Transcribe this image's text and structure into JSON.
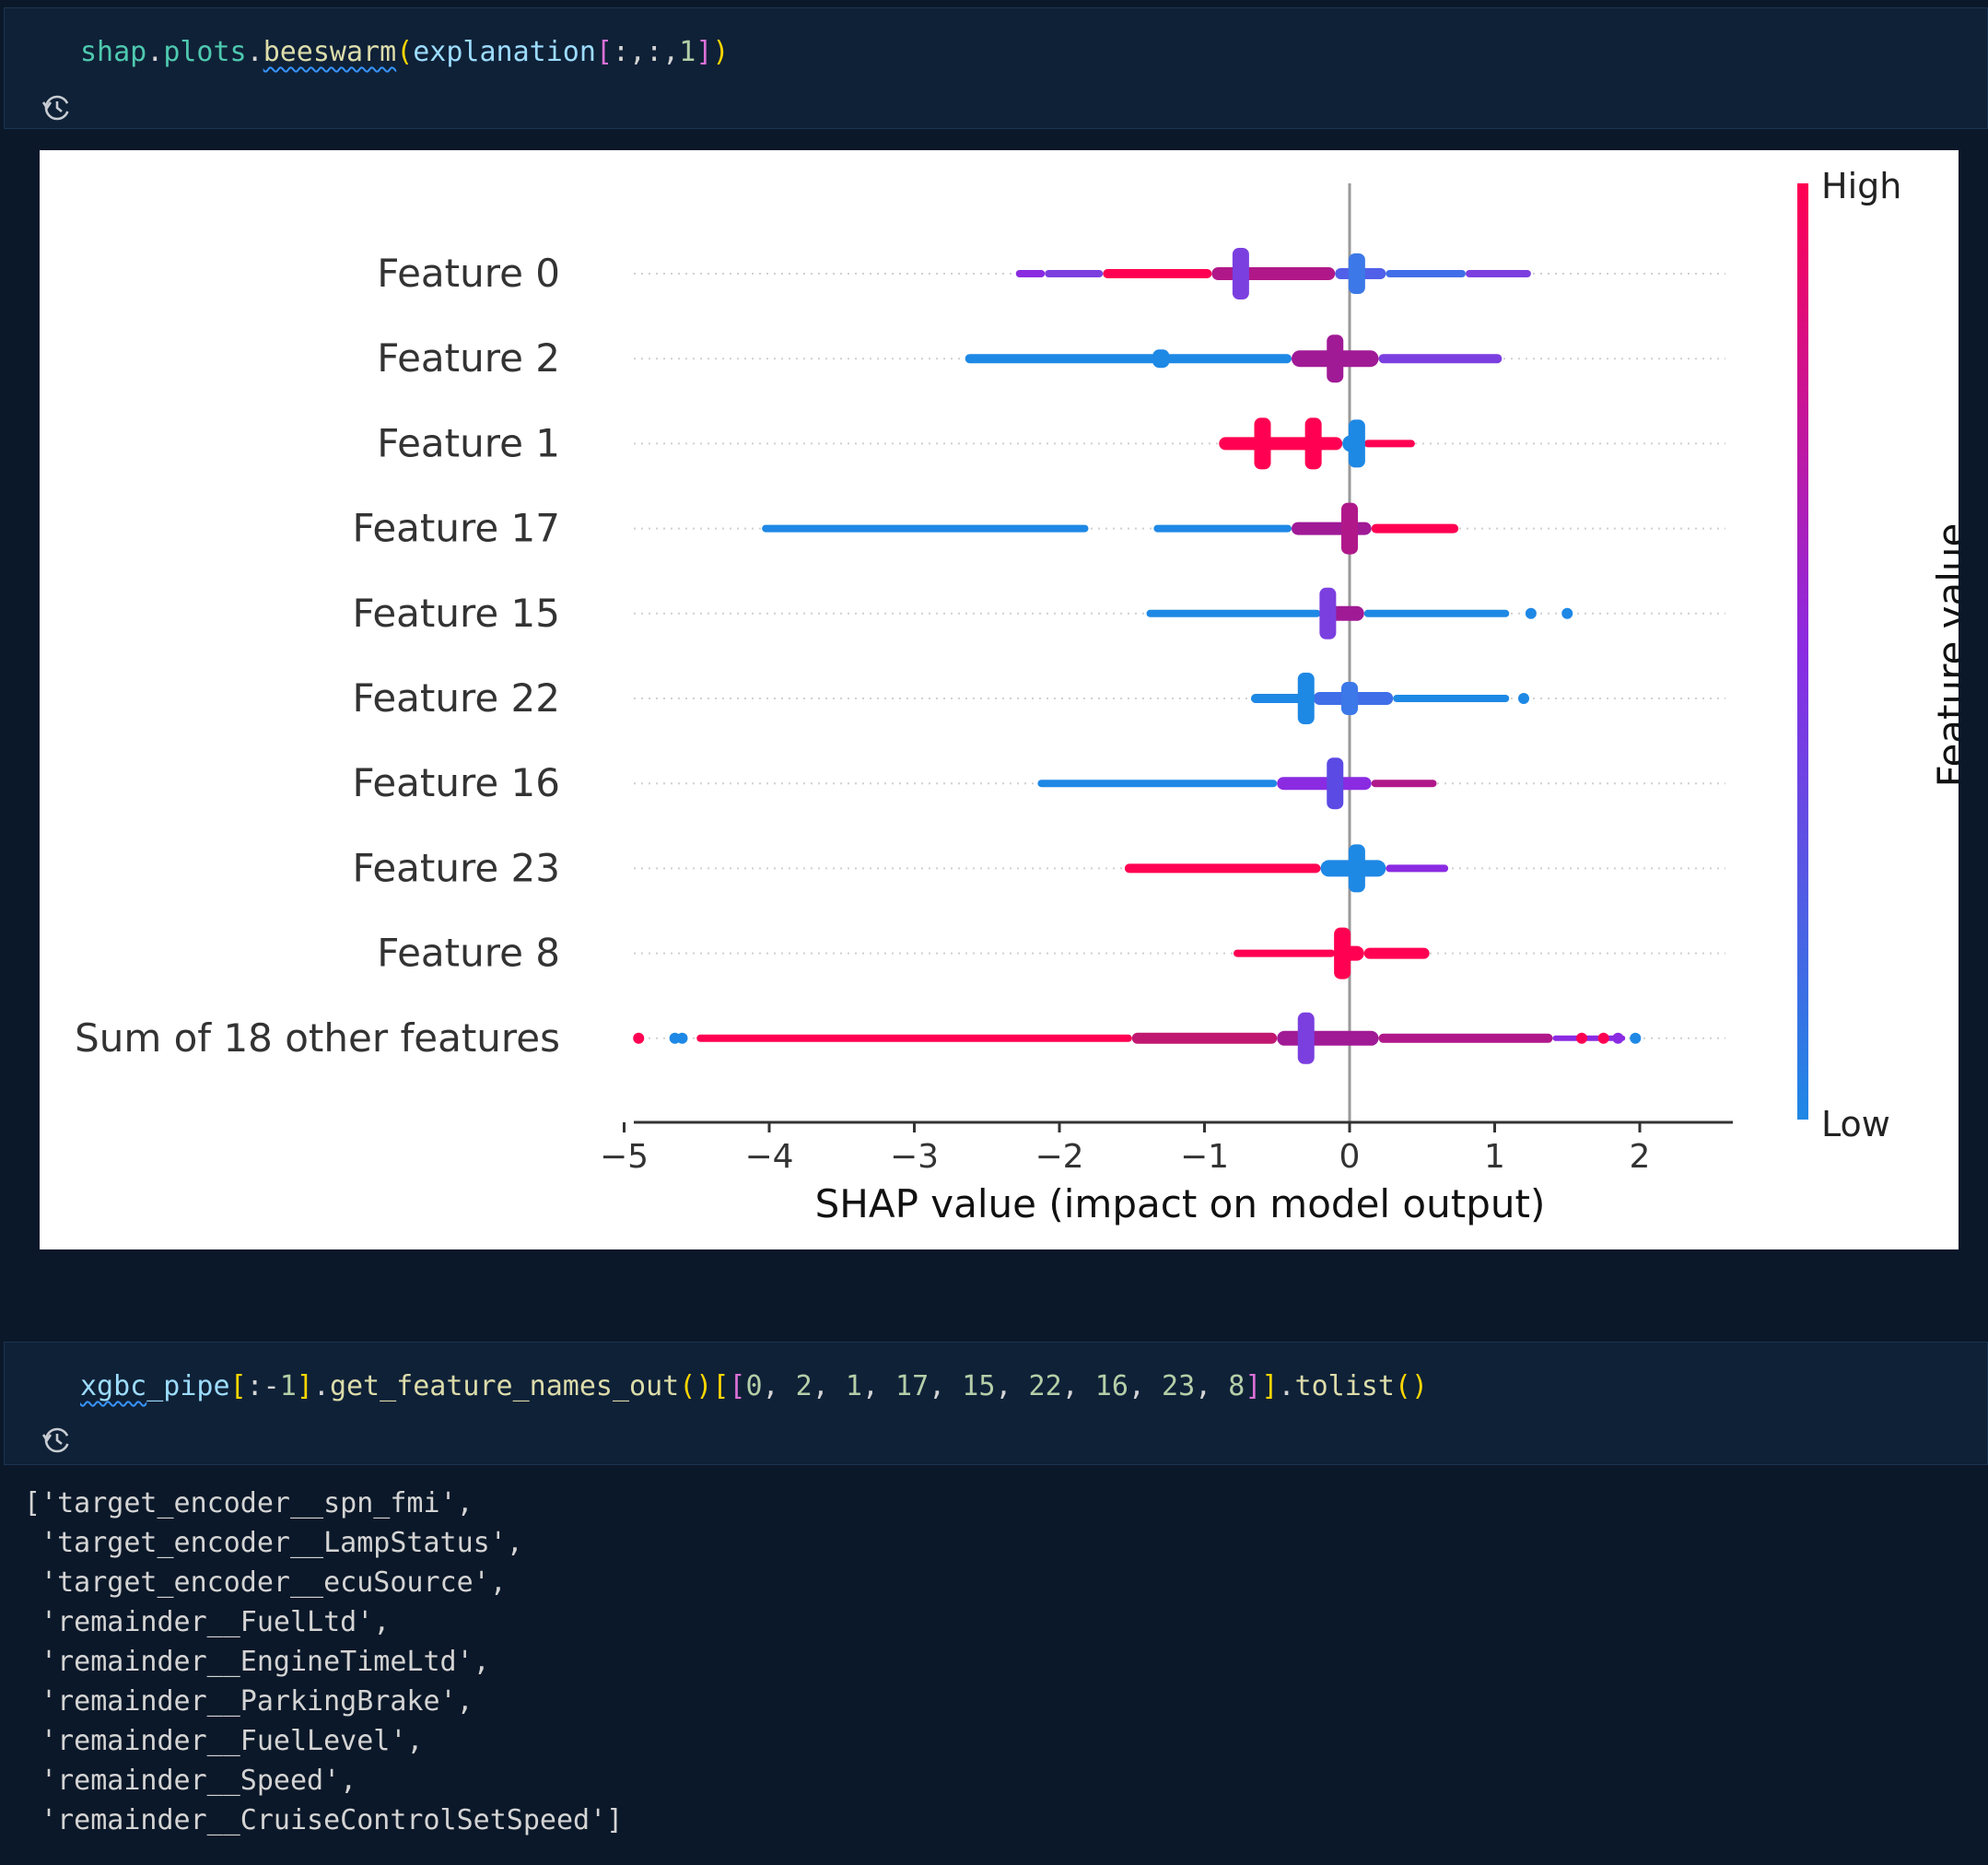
{
  "cells": [
    {
      "code_tokens": [
        {
          "text": "shap",
          "cls": "t-green"
        },
        {
          "text": ".",
          "cls": "t-plain"
        },
        {
          "text": "plots",
          "cls": "t-green"
        },
        {
          "text": ".",
          "cls": "t-plain"
        },
        {
          "text": "beeswarm",
          "cls": "t-func squig"
        },
        {
          "text": "(",
          "cls": "t-br1"
        },
        {
          "text": "explanation",
          "cls": "t-ident"
        },
        {
          "text": "[",
          "cls": "t-br2"
        },
        {
          "text": ":,:,",
          "cls": "t-plain"
        },
        {
          "text": "1",
          "cls": "t-num"
        },
        {
          "text": "]",
          "cls": "t-br2"
        },
        {
          "text": ")",
          "cls": "t-br1"
        }
      ],
      "history_icon": "history-icon"
    },
    {
      "code_tokens": [
        {
          "text": "xgbc",
          "cls": "t-ident squig"
        },
        {
          "text": "_pipe",
          "cls": "t-ident"
        },
        {
          "text": "[",
          "cls": "t-br1"
        },
        {
          "text": ":-",
          "cls": "t-plain"
        },
        {
          "text": "1",
          "cls": "t-num"
        },
        {
          "text": "]",
          "cls": "t-br1"
        },
        {
          "text": ".",
          "cls": "t-plain"
        },
        {
          "text": "get_feature_names_out",
          "cls": "t-func"
        },
        {
          "text": "()",
          "cls": "t-br1"
        },
        {
          "text": "[",
          "cls": "t-br1"
        },
        {
          "text": "[",
          "cls": "t-br2"
        },
        {
          "text": "0",
          "cls": "t-num"
        },
        {
          "text": ", ",
          "cls": "t-plain"
        },
        {
          "text": "2",
          "cls": "t-num"
        },
        {
          "text": ", ",
          "cls": "t-plain"
        },
        {
          "text": "1",
          "cls": "t-num"
        },
        {
          "text": ", ",
          "cls": "t-plain"
        },
        {
          "text": "17",
          "cls": "t-num"
        },
        {
          "text": ", ",
          "cls": "t-plain"
        },
        {
          "text": "15",
          "cls": "t-num"
        },
        {
          "text": ", ",
          "cls": "t-plain"
        },
        {
          "text": "22",
          "cls": "t-num"
        },
        {
          "text": ", ",
          "cls": "t-plain"
        },
        {
          "text": "16",
          "cls": "t-num"
        },
        {
          "text": ", ",
          "cls": "t-plain"
        },
        {
          "text": "23",
          "cls": "t-num"
        },
        {
          "text": ", ",
          "cls": "t-plain"
        },
        {
          "text": "8",
          "cls": "t-num"
        },
        {
          "text": "]",
          "cls": "t-br2"
        },
        {
          "text": "]",
          "cls": "t-br1"
        },
        {
          "text": ".",
          "cls": "t-plain"
        },
        {
          "text": "tolist",
          "cls": "t-func"
        },
        {
          "text": "()",
          "cls": "t-br1"
        }
      ],
      "history_icon": "history-icon"
    }
  ],
  "output_lines": [
    "['target_encoder__spn_fmi',",
    " 'target_encoder__LampStatus',",
    " 'target_encoder__ecuSource',",
    " 'remainder__FuelLtd',",
    " 'remainder__EngineTimeLtd',",
    " 'remainder__ParkingBrake',",
    " 'remainder__FuelLevel',",
    " 'remainder__Speed',",
    " 'remainder__CruiseControlSetSpeed']"
  ],
  "colors": {
    "high": "#ff0052",
    "low": "#1e88e5",
    "mid": "#8a2be2"
  },
  "chart_data": {
    "type": "scatter",
    "subtype": "beeswarm",
    "xlabel": "SHAP value (impact on model output)",
    "xticks": [
      -5,
      -4,
      -3,
      -2,
      -1,
      0,
      1,
      2
    ],
    "xtick_labels": [
      "−5",
      "−4",
      "−3",
      "−2",
      "−1",
      "0",
      "1",
      "2"
    ],
    "xlim": [
      -5.25,
      2.35
    ],
    "colorbar": {
      "label": "Feature value",
      "high": "High",
      "low": "Low"
    },
    "rows": [
      {
        "name": "Feature 0",
        "segments": [
          {
            "from": -2.3,
            "to": -2.1,
            "color": "#8a2be2",
            "w": 4
          },
          {
            "from": -2.1,
            "to": -1.7,
            "color": "#7b3fe0",
            "w": 4
          },
          {
            "from": -1.7,
            "to": -0.95,
            "color": "#ff0052",
            "w": 5
          },
          {
            "from": -0.95,
            "to": -0.1,
            "color": "#b0188a",
            "w": 7
          },
          {
            "from": -0.1,
            "to": 0.25,
            "color": "#5060e8",
            "w": 6
          },
          {
            "from": 0.25,
            "to": 0.8,
            "color": "#3f6ee8",
            "w": 4
          },
          {
            "from": 0.8,
            "to": 1.25,
            "color": "#7b3fe0",
            "w": 4
          }
        ],
        "bumps": [
          {
            "x": -0.75,
            "h": 28,
            "color": "#7b3fe0"
          },
          {
            "x": 0.05,
            "h": 22,
            "color": "#3c78e8"
          }
        ]
      },
      {
        "name": "Feature 2",
        "segments": [
          {
            "from": -2.65,
            "to": -0.4,
            "color": "#1e88e5",
            "w": 5
          },
          {
            "from": -0.4,
            "to": 0.2,
            "color": "#a01a96",
            "w": 9
          },
          {
            "from": 0.2,
            "to": 1.05,
            "color": "#7b3fe0",
            "w": 5
          }
        ],
        "bumps": [
          {
            "x": -0.1,
            "h": 26,
            "color": "#a01a96"
          },
          {
            "x": -1.3,
            "h": 10,
            "color": "#1e88e5"
          }
        ]
      },
      {
        "name": "Feature 1",
        "segments": [
          {
            "from": -0.9,
            "to": -0.05,
            "color": "#ff0052",
            "w": 7
          },
          {
            "from": -0.05,
            "to": 0.1,
            "color": "#1e88e5",
            "w": 9
          },
          {
            "from": 0.1,
            "to": 0.45,
            "color": "#ff0052",
            "w": 4
          }
        ],
        "bumps": [
          {
            "x": -0.6,
            "h": 28,
            "color": "#ff0052"
          },
          {
            "x": -0.25,
            "h": 28,
            "color": "#ff0052"
          },
          {
            "x": 0.05,
            "h": 26,
            "color": "#1e88e5"
          }
        ]
      },
      {
        "name": "Feature 17",
        "segments": [
          {
            "from": -4.05,
            "to": -1.8,
            "color": "#1e88e5",
            "w": 4
          },
          {
            "from": -1.35,
            "to": -0.4,
            "color": "#1e88e5",
            "w": 4
          },
          {
            "from": -0.4,
            "to": 0.15,
            "color": "#a01a96",
            "w": 7
          },
          {
            "from": 0.15,
            "to": 0.75,
            "color": "#ff0052",
            "w": 5
          }
        ],
        "bumps": [
          {
            "x": 0.0,
            "h": 28,
            "color": "#b0188a"
          }
        ]
      },
      {
        "name": "Feature 15",
        "segments": [
          {
            "from": -1.4,
            "to": -0.2,
            "color": "#1e88e5",
            "w": 4
          },
          {
            "from": -0.2,
            "to": 0.1,
            "color": "#a01a96",
            "w": 8
          },
          {
            "from": 0.1,
            "to": 1.1,
            "color": "#1e88e5",
            "w": 4
          }
        ],
        "bumps": [
          {
            "x": -0.15,
            "h": 28,
            "color": "#7b3fe0"
          }
        ],
        "dots": [
          {
            "x": 1.25,
            "color": "#1e88e5"
          },
          {
            "x": 1.5,
            "color": "#1e88e5"
          }
        ]
      },
      {
        "name": "Feature 22",
        "segments": [
          {
            "from": -0.68,
            "to": -0.25,
            "color": "#1e88e5",
            "w": 5
          },
          {
            "from": -0.25,
            "to": 0.3,
            "color": "#3f6ee8",
            "w": 7
          },
          {
            "from": 0.3,
            "to": 1.1,
            "color": "#1e88e5",
            "w": 4
          }
        ],
        "bumps": [
          {
            "x": -0.3,
            "h": 28,
            "color": "#1e88e5"
          },
          {
            "x": 0.0,
            "h": 18,
            "color": "#3c78e8"
          }
        ],
        "dots": [
          {
            "x": 1.2,
            "color": "#1e88e5"
          }
        ]
      },
      {
        "name": "Feature 16",
        "segments": [
          {
            "from": -2.15,
            "to": -0.5,
            "color": "#1e88e5",
            "w": 4
          },
          {
            "from": -0.5,
            "to": 0.15,
            "color": "#8a2be2",
            "w": 7
          },
          {
            "from": 0.15,
            "to": 0.6,
            "color": "#b0188a",
            "w": 4
          }
        ],
        "bumps": [
          {
            "x": -0.1,
            "h": 28,
            "color": "#5c4ae4"
          }
        ]
      },
      {
        "name": "Feature 23",
        "segments": [
          {
            "from": -1.55,
            "to": -0.2,
            "color": "#ff0052",
            "w": 5
          },
          {
            "from": -0.2,
            "to": 0.25,
            "color": "#1e88e5",
            "w": 9
          },
          {
            "from": 0.25,
            "to": 0.68,
            "color": "#8a2be2",
            "w": 4
          }
        ],
        "bumps": [
          {
            "x": 0.05,
            "h": 26,
            "color": "#1e88e5"
          }
        ]
      },
      {
        "name": "Feature 8",
        "segments": [
          {
            "from": -0.8,
            "to": -0.1,
            "color": "#ff0052",
            "w": 4
          },
          {
            "from": -0.1,
            "to": 0.1,
            "color": "#ff0052",
            "w": 8
          },
          {
            "from": 0.1,
            "to": 0.55,
            "color": "#ff0052",
            "w": 6
          }
        ],
        "bumps": [
          {
            "x": -0.05,
            "h": 28,
            "color": "#ff0052"
          }
        ]
      },
      {
        "name": "Sum of 18 other features",
        "segments": [
          {
            "from": -4.5,
            "to": -1.5,
            "color": "#ff0052",
            "w": 4
          },
          {
            "from": -1.5,
            "to": -0.5,
            "color": "#c01870",
            "w": 6
          },
          {
            "from": -0.5,
            "to": 0.2,
            "color": "#a01a96",
            "w": 8
          },
          {
            "from": 0.2,
            "to": 1.4,
            "color": "#b0188a",
            "w": 5
          },
          {
            "from": 1.4,
            "to": 1.9,
            "color": "#8a2be2",
            "w": 3
          }
        ],
        "bumps": [
          {
            "x": -0.3,
            "h": 28,
            "color": "#7b3fe0"
          }
        ],
        "dots": [
          {
            "x": -4.9,
            "color": "#ff0052"
          },
          {
            "x": -4.65,
            "color": "#1e88e5"
          },
          {
            "x": -4.6,
            "color": "#1e88e5"
          },
          {
            "x": 1.6,
            "color": "#ff0052"
          },
          {
            "x": 1.75,
            "color": "#ff0052"
          },
          {
            "x": 1.85,
            "color": "#8a2be2"
          },
          {
            "x": 1.97,
            "color": "#1e88e5"
          }
        ]
      }
    ]
  }
}
